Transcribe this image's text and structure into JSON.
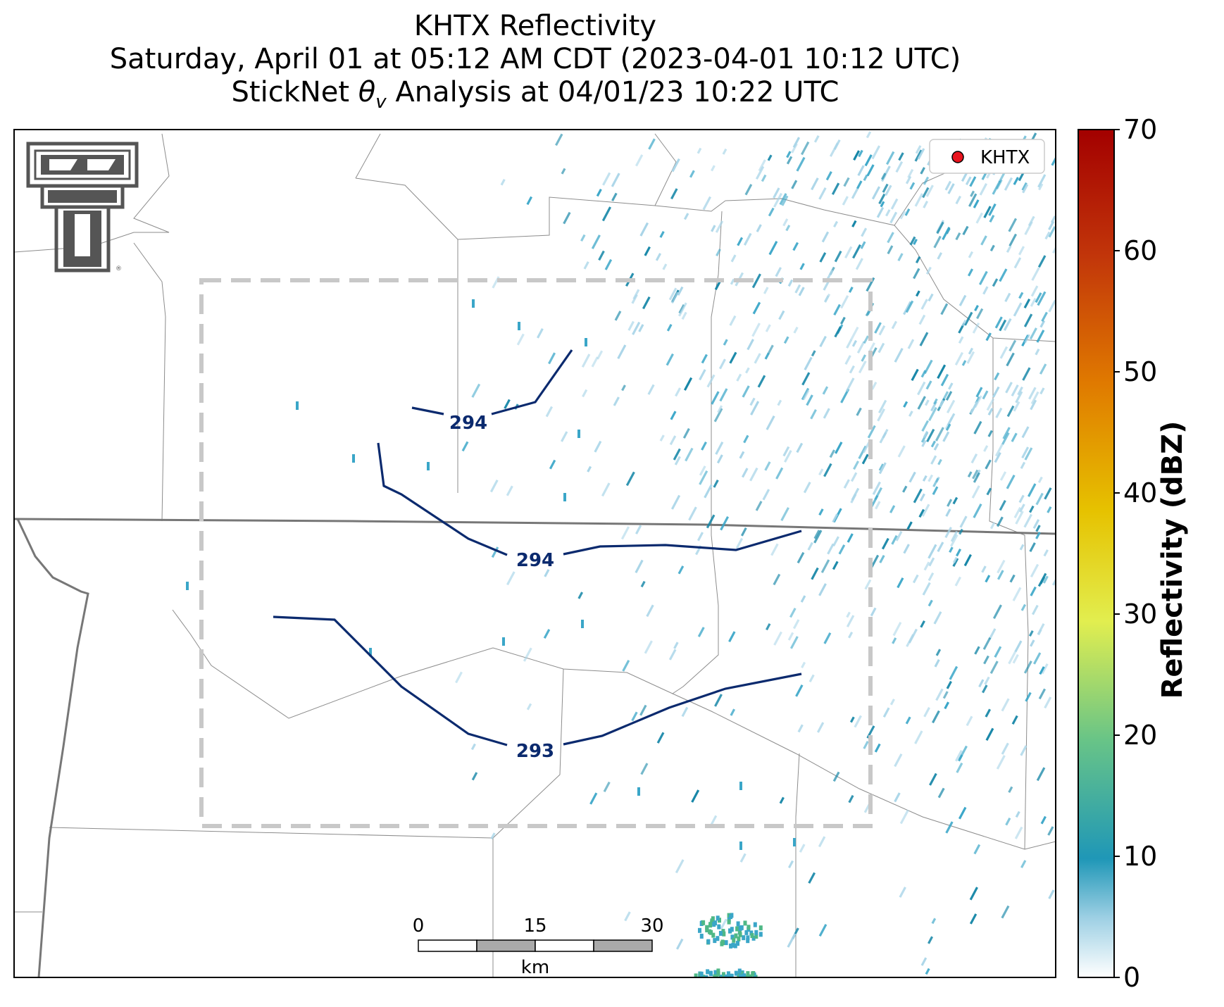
{
  "title": {
    "line1": "KHTX Reflectivity",
    "line2": "Saturday, April 01 at 05:12 AM CDT (2023-04-01 10:12 UTC)",
    "line3_pre": "StickNet ",
    "line3_sym": "θ",
    "line3_sub": "v",
    "line3_post": " Analysis at 04/01/23 10:22 UTC"
  },
  "legend": {
    "label": "KHTX",
    "marker_color": "#e8141e"
  },
  "scalebar": {
    "ticks": [
      "0",
      "15",
      "30"
    ],
    "unit": "km"
  },
  "colorbar": {
    "title": "Reflectivity (dBZ)",
    "ticks": [
      "0",
      "10",
      "20",
      "30",
      "40",
      "50",
      "60",
      "70"
    ],
    "min": 0,
    "max": 70,
    "colors": [
      "#ffffff",
      "#1f97b7",
      "#68c487",
      "#e2ee4f",
      "#e6c200",
      "#e07a00",
      "#c2360a",
      "#a30000"
    ]
  },
  "contours": [
    {
      "label": "294"
    },
    {
      "label": "294"
    },
    {
      "label": "293"
    }
  ],
  "colors": {
    "contour": "#0b2a6e",
    "county_line": "#8c8c8c",
    "state_line": "#777777",
    "domain_box": "#c8c8c8",
    "echo_light": "#a9d5e8",
    "echo_mid": "#3aa6c8",
    "echo_dark": "#1586a7",
    "echo_green": "#4fb886",
    "logo": "#555555"
  },
  "logo": {
    "name": "Texas Tech Double T"
  }
}
